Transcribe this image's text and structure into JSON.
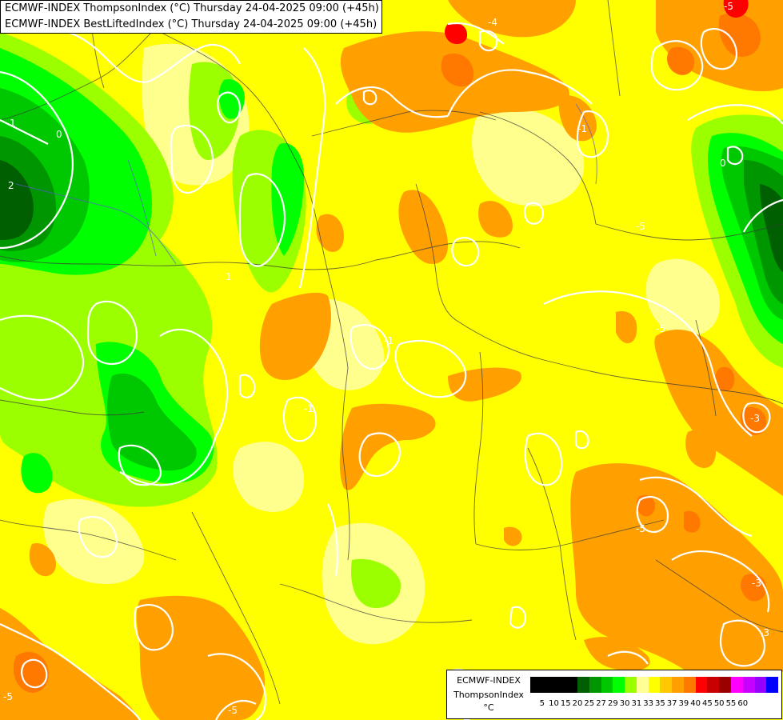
{
  "header": {
    "line1": "ECMWF-INDEX ThompsonIndex (°C) Thursday 24-04-2025 09:00 (+45h)",
    "line2": "ECMWF-INDEX BestLiftedIndex (°C) Thursday 24-04-2025 09:00 (+45h)"
  },
  "legend": {
    "model": "ECMWF-INDEX",
    "parameter": "ThompsonIndex",
    "unit": "°C",
    "ticks": [
      "5",
      "10",
      "15",
      "20",
      "25",
      "27",
      "29",
      "30",
      "31",
      "33",
      "35",
      "37",
      "39",
      "40",
      "45",
      "50",
      "55",
      "60"
    ],
    "colors": [
      "#000000",
      "#000000",
      "#000000",
      "#000000",
      "#005f00",
      "#009600",
      "#00c800",
      "#00ff00",
      "#9bff00",
      "#ffff96",
      "#ffff00",
      "#ffc800",
      "#ffa000",
      "#ff7800",
      "#ff0000",
      "#c80000",
      "#9b0000",
      "#ff00ff",
      "#c800ff",
      "#9600ff",
      "#0000ff"
    ]
  },
  "contour_labels": {
    "l1": "1",
    "l2": "0",
    "l3": "2",
    "l4": "1",
    "l5": "-1",
    "l6": "-5",
    "l7": "-5",
    "l8": "-5",
    "l9": "-3",
    "l10": "-5",
    "l11": "-3",
    "l12": "-5",
    "l13": "-5",
    "l14": "-3",
    "l15": "0",
    "l16": "-1",
    "l17": "-4",
    "l18": "-1"
  },
  "colors": {
    "background": "#ffff00",
    "contour": "#ffffff",
    "border": "#3a3a3a",
    "river": "#5a5ad0"
  }
}
